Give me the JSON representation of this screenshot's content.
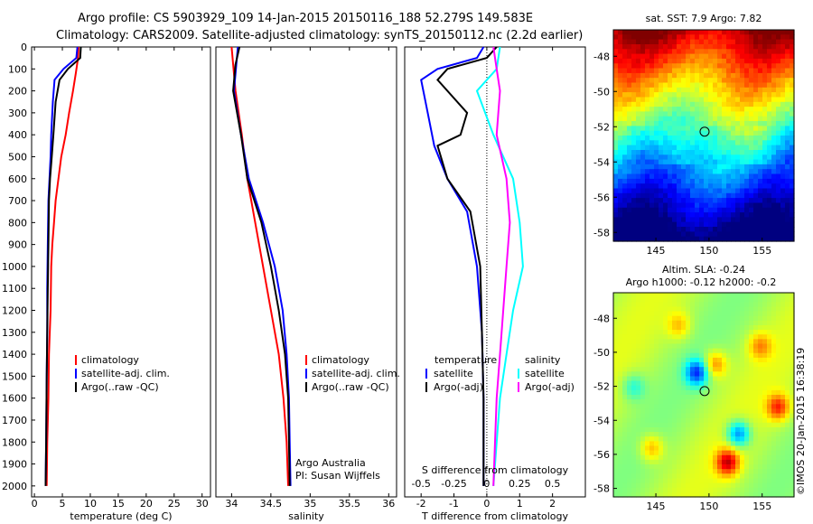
{
  "header": {
    "line1": "Argo profile: CS 5903929_109 14-Jan-2015 20150116_188 52.279S 149.583E",
    "line2": "Climatology: CARS2009. Satellite-adjusted climatology: synTS_20150112.nc (2.2d earlier)"
  },
  "colors": {
    "climatology": "#ff0000",
    "satellite": "#0000ff",
    "argo": "#000000",
    "sat_salinity": "#00ffff",
    "argo_salinity": "#ff00ff"
  },
  "chart_data": [
    {
      "type": "line",
      "id": "temperature",
      "xlabel": "temperature (deg C)",
      "ylabel": "",
      "xlim": [
        -0.5,
        31.5
      ],
      "ylim": [
        2050,
        0
      ],
      "xticks": [
        0,
        5,
        10,
        15,
        20,
        25,
        30
      ],
      "yticks": [
        0,
        100,
        200,
        300,
        400,
        500,
        600,
        700,
        800,
        900,
        1000,
        1100,
        1200,
        1300,
        1400,
        1500,
        1600,
        1700,
        1800,
        1900,
        2000
      ],
      "legend": [
        "climatology",
        "satellite-adj. clim.",
        "Argo(..raw -QC)"
      ],
      "series": [
        {
          "name": "climatology",
          "color": "#ff0000",
          "points": [
            [
              7.9,
              0
            ],
            [
              7.8,
              50
            ],
            [
              7.4,
              120
            ],
            [
              6.9,
              200
            ],
            [
              6.2,
              300
            ],
            [
              5.6,
              400
            ],
            [
              4.8,
              500
            ],
            [
              4.3,
              600
            ],
            [
              3.8,
              700
            ],
            [
              3.5,
              800
            ],
            [
              3.2,
              900
            ],
            [
              3.0,
              1000
            ],
            [
              2.9,
              1200
            ],
            [
              2.6,
              1400
            ],
            [
              2.5,
              1600
            ],
            [
              2.3,
              1800
            ],
            [
              2.2,
              2000
            ]
          ]
        },
        {
          "name": "satellite-adj. clim.",
          "color": "#0000ff",
          "points": [
            [
              7.7,
              0
            ],
            [
              7.5,
              50
            ],
            [
              5.2,
              100
            ],
            [
              3.6,
              150
            ],
            [
              3.3,
              250
            ],
            [
              3.0,
              400
            ],
            [
              2.9,
              500
            ],
            [
              2.7,
              600
            ],
            [
              2.5,
              700
            ],
            [
              2.4,
              900
            ],
            [
              2.3,
              1100
            ],
            [
              2.3,
              1300
            ],
            [
              2.2,
              1500
            ],
            [
              2.1,
              1800
            ],
            [
              2.0,
              2000
            ]
          ]
        },
        {
          "name": "Argo(..raw -QC)",
          "color": "#000000",
          "points": [
            [
              8.3,
              0
            ],
            [
              8.2,
              50
            ],
            [
              6.0,
              100
            ],
            [
              4.5,
              150
            ],
            [
              3.8,
              250
            ],
            [
              3.4,
              400
            ],
            [
              3.1,
              500
            ],
            [
              2.8,
              600
            ],
            [
              2.6,
              700
            ],
            [
              2.5,
              900
            ],
            [
              2.4,
              1100
            ],
            [
              2.3,
              1300
            ],
            [
              2.2,
              1500
            ],
            [
              2.1,
              1800
            ],
            [
              2.0,
              2000
            ]
          ]
        }
      ],
      "annotations": []
    },
    {
      "type": "line",
      "id": "salinity",
      "xlabel": "salinity",
      "ylabel": "",
      "xlim": [
        33.8,
        36.1
      ],
      "ylim": [
        2050,
        0
      ],
      "xticks": [
        34,
        34.5,
        35,
        35.5,
        36
      ],
      "yticks": [],
      "legend": [
        "climatology",
        "satellite-adj. clim.",
        "Argo(..raw -QC)"
      ],
      "series": [
        {
          "name": "climatology",
          "color": "#ff0000",
          "points": [
            [
              34.0,
              0
            ],
            [
              34.02,
              80
            ],
            [
              34.05,
              200
            ],
            [
              34.13,
              400
            ],
            [
              34.2,
              600
            ],
            [
              34.3,
              800
            ],
            [
              34.4,
              1000
            ],
            [
              34.5,
              1200
            ],
            [
              34.6,
              1400
            ],
            [
              34.66,
              1600
            ],
            [
              34.7,
              1800
            ],
            [
              34.72,
              2000
            ]
          ]
        },
        {
          "name": "satellite-adj. clim.",
          "color": "#0000ff",
          "points": [
            [
              34.08,
              0
            ],
            [
              34.06,
              80
            ],
            [
              34.03,
              200
            ],
            [
              34.12,
              400
            ],
            [
              34.22,
              600
            ],
            [
              34.4,
              800
            ],
            [
              34.55,
              1000
            ],
            [
              34.65,
              1200
            ],
            [
              34.7,
              1400
            ],
            [
              34.73,
              1600
            ],
            [
              34.74,
              1800
            ],
            [
              34.75,
              2000
            ]
          ]
        },
        {
          "name": "Argo(..raw -QC)",
          "color": "#000000",
          "points": [
            [
              34.1,
              0
            ],
            [
              34.05,
              80
            ],
            [
              34.02,
              200
            ],
            [
              34.12,
              400
            ],
            [
              34.2,
              600
            ],
            [
              34.38,
              800
            ],
            [
              34.5,
              1000
            ],
            [
              34.6,
              1200
            ],
            [
              34.68,
              1400
            ],
            [
              34.72,
              1600
            ],
            [
              34.73,
              1800
            ],
            [
              34.74,
              2000
            ]
          ]
        }
      ],
      "annotations": [
        "Argo Australia",
        "PI: Susan Wijffels"
      ]
    },
    {
      "type": "line",
      "id": "difference",
      "xlabel": "T difference from climatology",
      "xlabel_top": "S difference from climatology",
      "xlim": [
        -2.5,
        3
      ],
      "ylim": [
        2050,
        0
      ],
      "xticks": [
        -2,
        -1,
        0,
        1,
        2
      ],
      "xticks_top_labels": [
        "-0.5",
        "-0.25",
        "0",
        "0.25",
        "0.5"
      ],
      "legend_left_title": "temperature",
      "legend_right_title": "salinity",
      "legend_left": [
        "satellite",
        "Argo(-adj)"
      ],
      "legend_right": [
        "satellite",
        "Argo(-adj)"
      ],
      "series": [
        {
          "name": "temperature satellite",
          "color": "#0000ff",
          "points": [
            [
              -0.1,
              0
            ],
            [
              -0.3,
              50
            ],
            [
              -1.5,
              100
            ],
            [
              -2.0,
              150
            ],
            [
              -1.8,
              300
            ],
            [
              -1.6,
              450
            ],
            [
              -1.2,
              600
            ],
            [
              -0.6,
              750
            ],
            [
              -0.3,
              1000
            ],
            [
              -0.15,
              1300
            ],
            [
              -0.1,
              1600
            ],
            [
              -0.1,
              2000
            ]
          ]
        },
        {
          "name": "temperature Argo(-adj)",
          "color": "#000000",
          "points": [
            [
              0.3,
              0
            ],
            [
              0.0,
              50
            ],
            [
              -1.2,
              100
            ],
            [
              -1.5,
              150
            ],
            [
              -0.6,
              300
            ],
            [
              -0.8,
              400
            ],
            [
              -1.5,
              450
            ],
            [
              -1.2,
              600
            ],
            [
              -0.5,
              750
            ],
            [
              -0.2,
              1000
            ],
            [
              -0.15,
              1300
            ],
            [
              -0.1,
              1600
            ],
            [
              -0.1,
              2000
            ]
          ]
        },
        {
          "name": "salinity satellite",
          "color": "#00ffff",
          "points": [
            [
              0.4,
              0
            ],
            [
              0.3,
              100
            ],
            [
              -0.3,
              200
            ],
            [
              0.2,
              400
            ],
            [
              0.8,
              600
            ],
            [
              1.0,
              800
            ],
            [
              1.1,
              1000
            ],
            [
              0.8,
              1200
            ],
            [
              0.6,
              1400
            ],
            [
              0.4,
              1600
            ],
            [
              0.2,
              2000
            ]
          ]
        },
        {
          "name": "salinity Argo(-adj)",
          "color": "#ff00ff",
          "points": [
            [
              0.2,
              0
            ],
            [
              0.3,
              100
            ],
            [
              0.4,
              200
            ],
            [
              0.3,
              400
            ],
            [
              0.6,
              600
            ],
            [
              0.7,
              800
            ],
            [
              0.6,
              1000
            ],
            [
              0.5,
              1200
            ],
            [
              0.4,
              1400
            ],
            [
              0.3,
              1600
            ],
            [
              0.2,
              2000
            ]
          ]
        }
      ],
      "annotations": []
    },
    {
      "type": "heatmap",
      "id": "sst_map",
      "title": "sat. SST: 7.9 Argo: 7.82",
      "xlim": [
        141,
        158
      ],
      "ylim": [
        -58.5,
        -46.5
      ],
      "xticks": [
        145,
        150,
        155
      ],
      "yticks": [
        -48,
        -50,
        -52,
        -54,
        -56,
        -58
      ],
      "marker": [
        149.583,
        -52.279
      ]
    },
    {
      "type": "heatmap",
      "id": "sla_map",
      "title_line1": "Altim. SLA: -0.24",
      "title_line2": "Argo h1000: -0.12 h2000: -0.2",
      "xlim": [
        141,
        158
      ],
      "ylim": [
        -58.5,
        -46.5
      ],
      "xticks": [
        145,
        150,
        155
      ],
      "yticks": [
        -48,
        -50,
        -52,
        -54,
        -56,
        -58
      ],
      "marker": [
        149.583,
        -52.279
      ]
    }
  ],
  "footer": {
    "credit": "©IMOS 20-Jan-2015 16:38:19"
  }
}
